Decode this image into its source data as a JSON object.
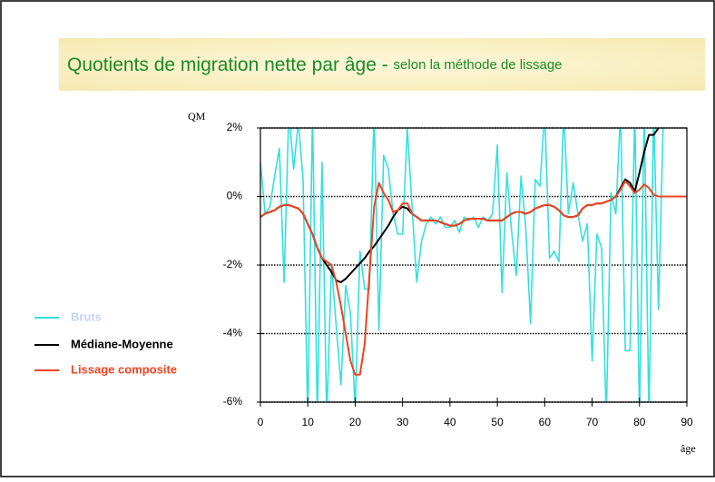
{
  "chart_data": {
    "type": "line",
    "title": "Quotients de migration nette par âge - ",
    "subtitle": "selon la méthode de lissage",
    "y_label": "QM",
    "x_label": "âge",
    "x": [
      0,
      1,
      2,
      3,
      4,
      5,
      6,
      7,
      8,
      9,
      10,
      11,
      12,
      13,
      14,
      15,
      16,
      17,
      18,
      19,
      20,
      21,
      22,
      23,
      24,
      25,
      26,
      27,
      28,
      29,
      30,
      31,
      32,
      33,
      34,
      35,
      36,
      37,
      38,
      39,
      40,
      41,
      42,
      43,
      44,
      45,
      46,
      47,
      48,
      49,
      50,
      51,
      52,
      53,
      54,
      55,
      56,
      57,
      58,
      59,
      60,
      61,
      62,
      63,
      64,
      65,
      66,
      67,
      68,
      69,
      70,
      71,
      72,
      73,
      74,
      75,
      76,
      77,
      78,
      79,
      80,
      81,
      82,
      83,
      84,
      85,
      86,
      87,
      88,
      89,
      90
    ],
    "xlim": [
      0,
      90
    ],
    "xticks": [
      0,
      10,
      20,
      30,
      40,
      50,
      60,
      70,
      80,
      90
    ],
    "ylim": [
      -6,
      2
    ],
    "yticks": [
      {
        "value": -6,
        "label": "-6%"
      },
      {
        "value": -4,
        "label": "-4%"
      },
      {
        "value": -2,
        "label": "-2%"
      },
      {
        "value": 0,
        "label": "0%"
      },
      {
        "value": 2,
        "label": "2%"
      }
    ],
    "grid": true,
    "legend": "left",
    "series": [
      {
        "name": "Bruts",
        "color": "#33e0e0",
        "values": [
          1.0,
          -0.5,
          -0.3,
          0.6,
          1.4,
          -2.5,
          2.5,
          0.8,
          2.2,
          0.5,
          -6.5,
          2.5,
          -6.5,
          1.0,
          -6.5,
          -2.0,
          -3.8,
          -5.5,
          -2.6,
          -3.4,
          -6.2,
          -1.6,
          -2.7,
          -2.7,
          2.5,
          -3.9,
          1.2,
          0.8,
          -0.5,
          -1.1,
          -1.1,
          2.0,
          -0.3,
          -2.5,
          -1.3,
          -0.8,
          -0.6,
          -0.8,
          -0.6,
          -0.9,
          -0.9,
          -0.7,
          -1.05,
          -0.6,
          -0.7,
          -0.6,
          -0.9,
          -0.6,
          -0.7,
          -0.5,
          1.5,
          -2.8,
          0.7,
          -1.0,
          -2.3,
          0.6,
          -0.9,
          -3.7,
          0.5,
          0.3,
          2.5,
          -1.8,
          -1.6,
          -1.9,
          2.5,
          -0.5,
          0.4,
          -0.5,
          -1.3,
          -0.8,
          -4.8,
          -1.1,
          -1.5,
          -6.5,
          0.1,
          -0.5,
          2.5,
          -4.5,
          -4.5,
          2.5,
          -6.5,
          2.5,
          -6.5,
          2.5,
          -3.3,
          2.1,
          null,
          null,
          null,
          null,
          null
        ]
      },
      {
        "name": "Médiane-Moyenne",
        "color": "#000000",
        "values": [
          -0.6,
          -0.5,
          -0.45,
          -0.4,
          -0.3,
          -0.25,
          -0.25,
          -0.3,
          -0.35,
          -0.5,
          -0.8,
          -1.1,
          -1.5,
          -1.8,
          -2.0,
          -2.2,
          -2.45,
          -2.5,
          -2.4,
          -2.25,
          -2.1,
          -1.95,
          -1.8,
          -1.6,
          -1.45,
          -1.25,
          -1.05,
          -0.85,
          -0.6,
          -0.4,
          -0.3,
          -0.35,
          -0.5,
          -0.6,
          -0.7,
          -0.7,
          -0.7,
          -0.7,
          -0.75,
          -0.8,
          -0.85,
          -0.85,
          -0.8,
          -0.7,
          -0.65,
          -0.65,
          -0.65,
          -0.65,
          -0.7,
          -0.7,
          -0.7,
          -0.7,
          -0.6,
          -0.5,
          -0.45,
          -0.45,
          -0.5,
          -0.45,
          -0.35,
          -0.3,
          -0.25,
          -0.25,
          -0.3,
          -0.4,
          -0.55,
          -0.6,
          -0.6,
          -0.55,
          -0.35,
          -0.25,
          -0.25,
          -0.2,
          -0.2,
          -0.15,
          -0.1,
          0.0,
          0.25,
          0.5,
          0.4,
          0.15,
          0.7,
          1.3,
          1.8,
          1.8,
          2.0,
          2.1,
          null,
          null,
          null,
          null,
          null
        ]
      },
      {
        "name": "Lissage composite",
        "color": "#ee4422",
        "values": [
          -0.6,
          -0.5,
          -0.45,
          -0.4,
          -0.3,
          -0.25,
          -0.25,
          -0.3,
          -0.35,
          -0.5,
          -0.8,
          -1.1,
          -1.5,
          -1.8,
          -1.9,
          -2.0,
          -2.5,
          -3.2,
          -4.0,
          -4.8,
          -5.2,
          -5.2,
          -4.3,
          -2.3,
          -0.3,
          0.4,
          0.1,
          -0.1,
          -0.45,
          -0.4,
          -0.2,
          -0.2,
          -0.5,
          -0.6,
          -0.7,
          -0.7,
          -0.7,
          -0.7,
          -0.75,
          -0.8,
          -0.85,
          -0.85,
          -0.8,
          -0.7,
          -0.65,
          -0.65,
          -0.65,
          -0.65,
          -0.7,
          -0.7,
          -0.7,
          -0.7,
          -0.6,
          -0.5,
          -0.45,
          -0.45,
          -0.5,
          -0.45,
          -0.35,
          -0.3,
          -0.25,
          -0.25,
          -0.3,
          -0.4,
          -0.55,
          -0.6,
          -0.6,
          -0.55,
          -0.35,
          -0.25,
          -0.25,
          -0.2,
          -0.2,
          -0.15,
          -0.1,
          0.0,
          0.2,
          0.45,
          0.3,
          0.1,
          0.2,
          0.35,
          0.25,
          0.05,
          0.0,
          0.0,
          0.0,
          0.0,
          0.0,
          0.0,
          0.0
        ]
      }
    ]
  }
}
